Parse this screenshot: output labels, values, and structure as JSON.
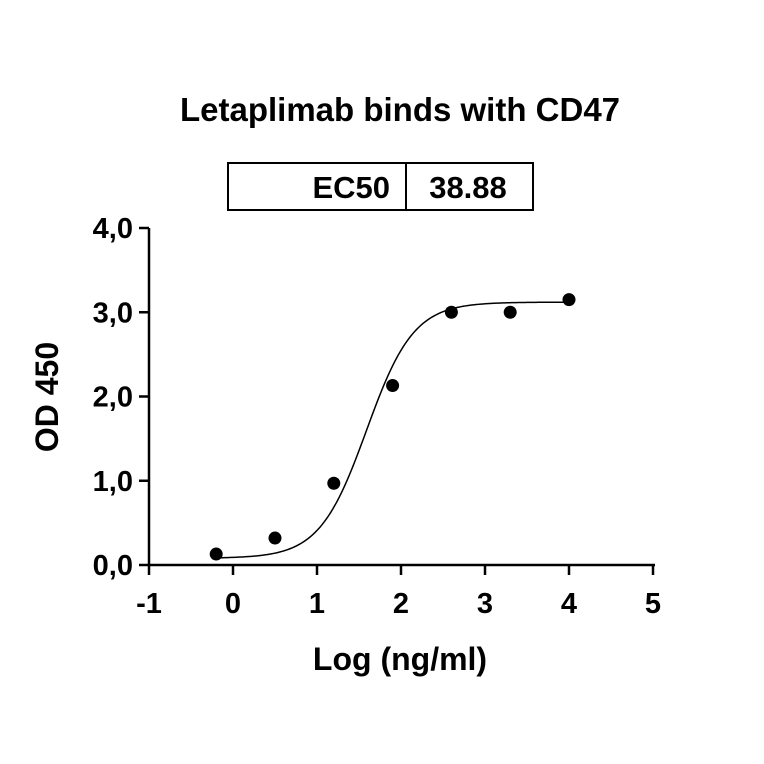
{
  "chart_data": {
    "type": "scatter",
    "title": "Letaplimab binds with CD47",
    "xlabel": "Log (ng/ml)",
    "ylabel": "OD 450",
    "xlim": [
      -1,
      5
    ],
    "ylim": [
      0,
      4
    ],
    "x_ticks": [
      "-1",
      "0",
      "1",
      "2",
      "3",
      "4",
      "5"
    ],
    "y_ticks": [
      "0,0",
      "1,0",
      "2,0",
      "3,0",
      "4,0"
    ],
    "ec50_table": {
      "label": "EC50",
      "value": "38.88"
    },
    "points": [
      {
        "x": -0.2,
        "y": 0.13
      },
      {
        "x": 0.5,
        "y": 0.32
      },
      {
        "x": 1.2,
        "y": 0.97
      },
      {
        "x": 1.9,
        "y": 2.13
      },
      {
        "x": 2.6,
        "y": 3.0
      },
      {
        "x": 3.3,
        "y": 3.0
      },
      {
        "x": 4.0,
        "y": 3.15
      }
    ],
    "fit": {
      "model": "4PL sigmoid",
      "bottom": 0.08,
      "top": 3.12,
      "logEC50": 1.59,
      "hill": 1.55,
      "x_range": [
        -0.2,
        4.0
      ]
    },
    "grid": false,
    "legend": "none"
  }
}
